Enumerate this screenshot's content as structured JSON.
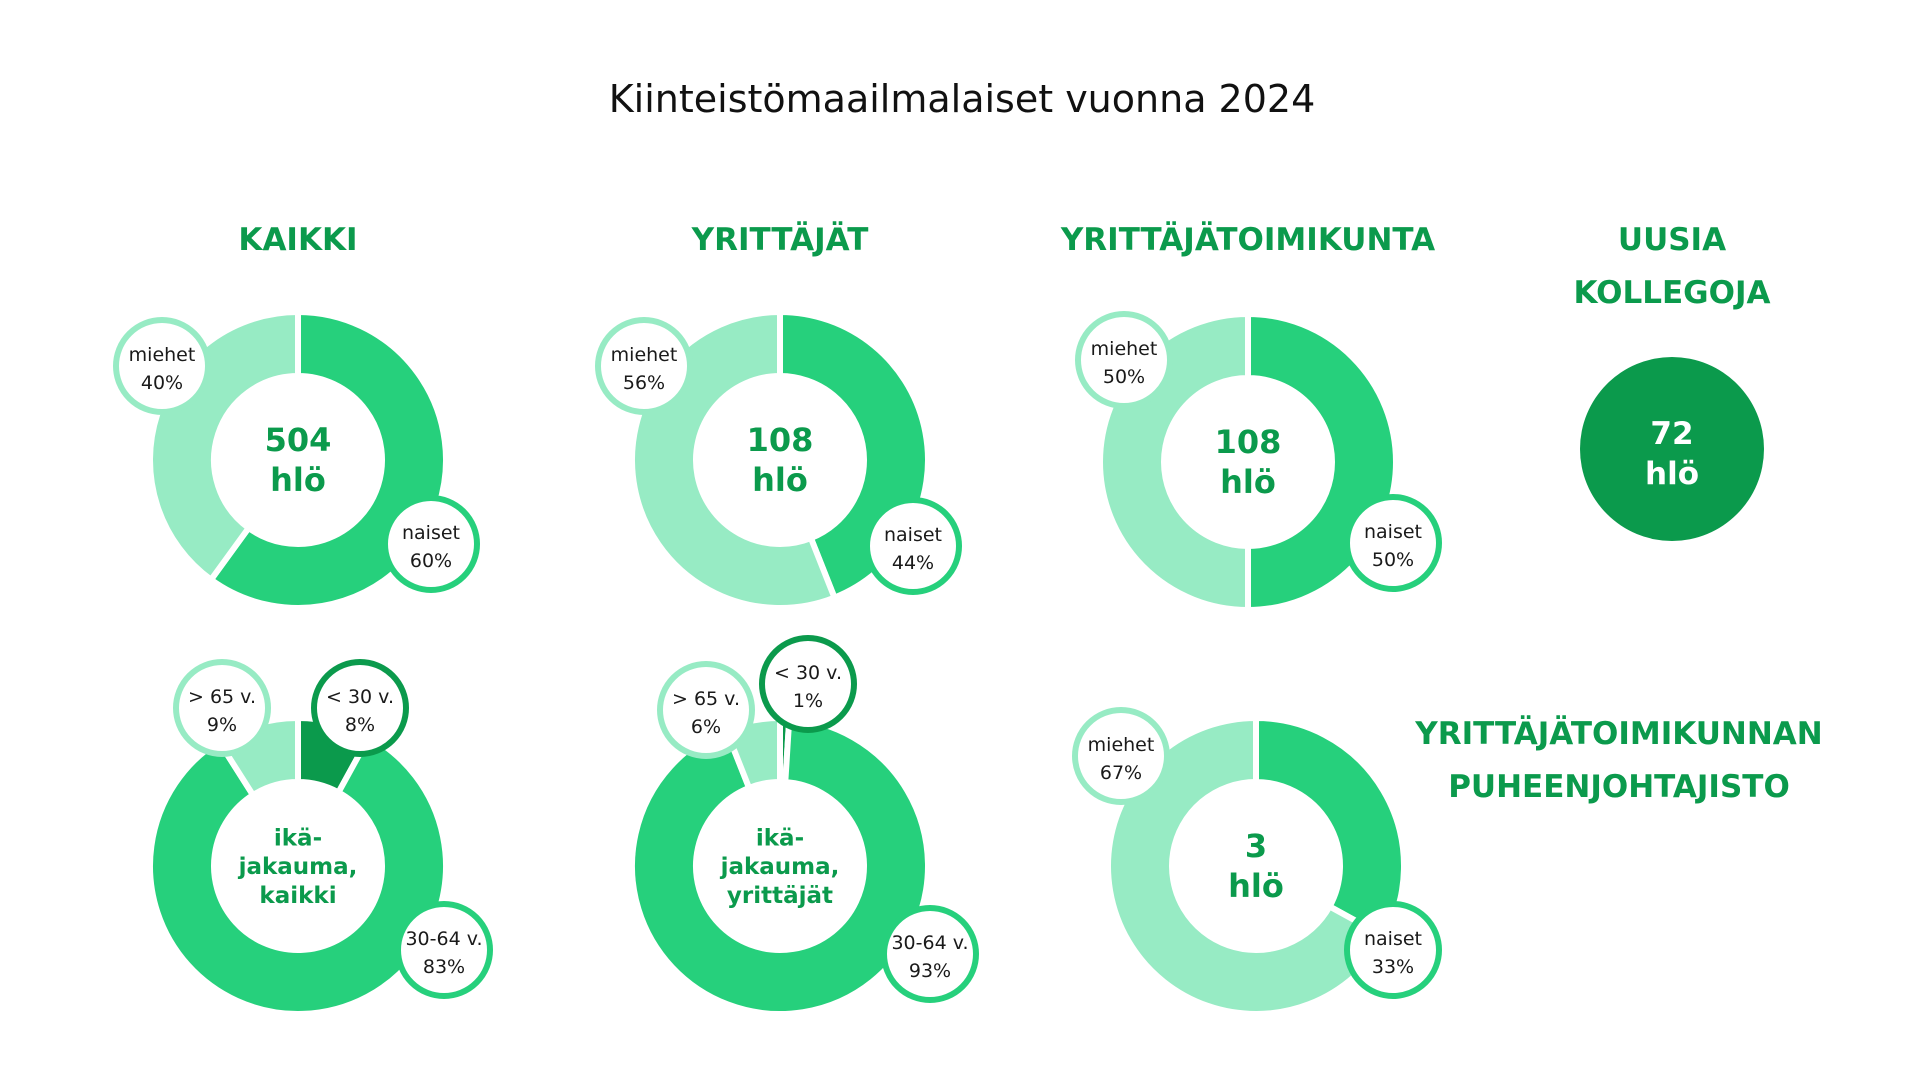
{
  "title": "Kiinteistömaailmalaiset vuonna 2024",
  "colors": {
    "dark": "#0b9a4c",
    "mid": "#26d07c",
    "light": "#97ebc4",
    "text": "#1a1a1a",
    "background": "#ffffff"
  },
  "sections": {
    "kaikki": "KAIKKI",
    "yrittajat": "YRITTÄJÄT",
    "toimikunta": "YRITTÄJÄTOIMIKUNTA",
    "uusia_line1": "UUSIA",
    "uusia_line2": "KOLLEGOJA",
    "pj_line1": "YRITTÄJÄTOIMIKUNNAN",
    "pj_line2": "PUHEENJOHTAJISTO"
  },
  "new_colleagues": {
    "value": "72",
    "unit": "hlö"
  },
  "chart_data": [
    {
      "type": "pie",
      "id": "kaikki-gender",
      "center": [
        "504",
        "hlö"
      ],
      "slices": [
        {
          "label": "naiset",
          "value": 60,
          "display": "60%",
          "color": "mid"
        },
        {
          "label": "miehet",
          "value": 40,
          "display": "40%",
          "color": "light"
        }
      ]
    },
    {
      "type": "pie",
      "id": "yrittajat-gender",
      "center": [
        "108",
        "hlö"
      ],
      "slices": [
        {
          "label": "naiset",
          "value": 44,
          "display": "44%",
          "color": "mid"
        },
        {
          "label": "miehet",
          "value": 56,
          "display": "56%",
          "color": "light"
        }
      ]
    },
    {
      "type": "pie",
      "id": "toimikunta-gender",
      "center": [
        "108",
        "hlö"
      ],
      "slices": [
        {
          "label": "naiset",
          "value": 50,
          "display": "50%",
          "color": "mid"
        },
        {
          "label": "miehet",
          "value": 50,
          "display": "50%",
          "color": "light"
        }
      ]
    },
    {
      "type": "pie",
      "id": "kaikki-age",
      "center": [
        "ikä-",
        "jakauma,",
        "kaikki"
      ],
      "slices": [
        {
          "label": "< 30 v.",
          "value": 8,
          "display": "8%",
          "color": "dark"
        },
        {
          "label": "30-64 v.",
          "value": 83,
          "display": "83%",
          "color": "mid"
        },
        {
          "label": "> 65 v.",
          "value": 9,
          "display": "9%",
          "color": "light"
        }
      ]
    },
    {
      "type": "pie",
      "id": "yrittajat-age",
      "center": [
        "ikä-",
        "jakauma,",
        "yrittäjät"
      ],
      "slices": [
        {
          "label": "< 30 v.",
          "value": 1,
          "display": "1%",
          "color": "dark"
        },
        {
          "label": "30-64 v.",
          "value": 93,
          "display": "93%",
          "color": "mid"
        },
        {
          "label": "> 65 v.",
          "value": 6,
          "display": "6%",
          "color": "light"
        }
      ]
    },
    {
      "type": "pie",
      "id": "puheenjohtajisto-gender",
      "center": [
        "3",
        "hlö"
      ],
      "slices": [
        {
          "label": "naiset",
          "value": 33,
          "display": "33%",
          "color": "mid"
        },
        {
          "label": "miehet",
          "value": 67,
          "display": "67%",
          "color": "light"
        }
      ]
    }
  ]
}
